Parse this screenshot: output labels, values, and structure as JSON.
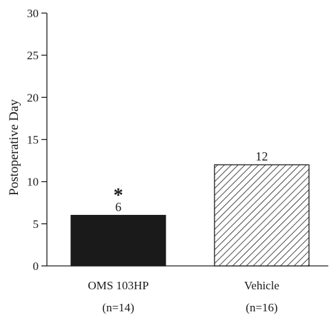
{
  "chart_data": {
    "type": "bar",
    "title": "",
    "xlabel": "",
    "ylabel": "Postoperative Day",
    "ylim": [
      0,
      30
    ],
    "yticks": [
      0,
      5,
      10,
      15,
      20,
      25,
      30
    ],
    "grid": false,
    "categories": [
      {
        "name": "OMS 103HP",
        "n": "(n=14)"
      },
      {
        "name": "Vehicle",
        "n": "(n=16)"
      }
    ],
    "values": [
      6,
      12
    ],
    "data_labels": [
      "6",
      "12"
    ],
    "annotations": [
      {
        "category_index": 0,
        "text": "*",
        "meaning": "significance marker"
      }
    ],
    "bar_fills": [
      "solid",
      "diagonal-hatch"
    ],
    "colors": {
      "bar_solid": "#1a1a1a",
      "hatch": "#1a1a1a",
      "axis": "#1a1a1a"
    }
  }
}
